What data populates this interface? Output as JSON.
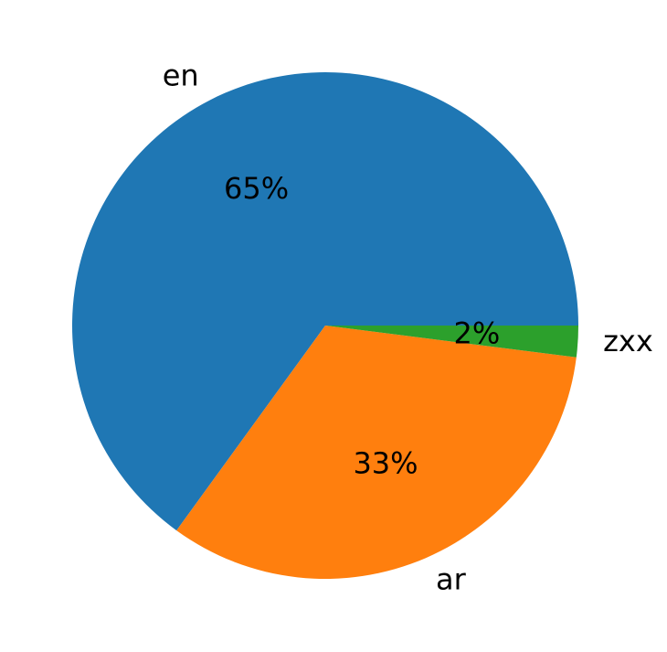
{
  "chart_data": {
    "type": "pie",
    "categories": [
      "en",
      "ar",
      "zxx"
    ],
    "values": [
      65,
      33,
      2
    ],
    "value_labels": [
      "65%",
      "33%",
      "2%"
    ],
    "colors": [
      "#1f77b4",
      "#ff7f0e",
      "#2ca02c"
    ]
  }
}
